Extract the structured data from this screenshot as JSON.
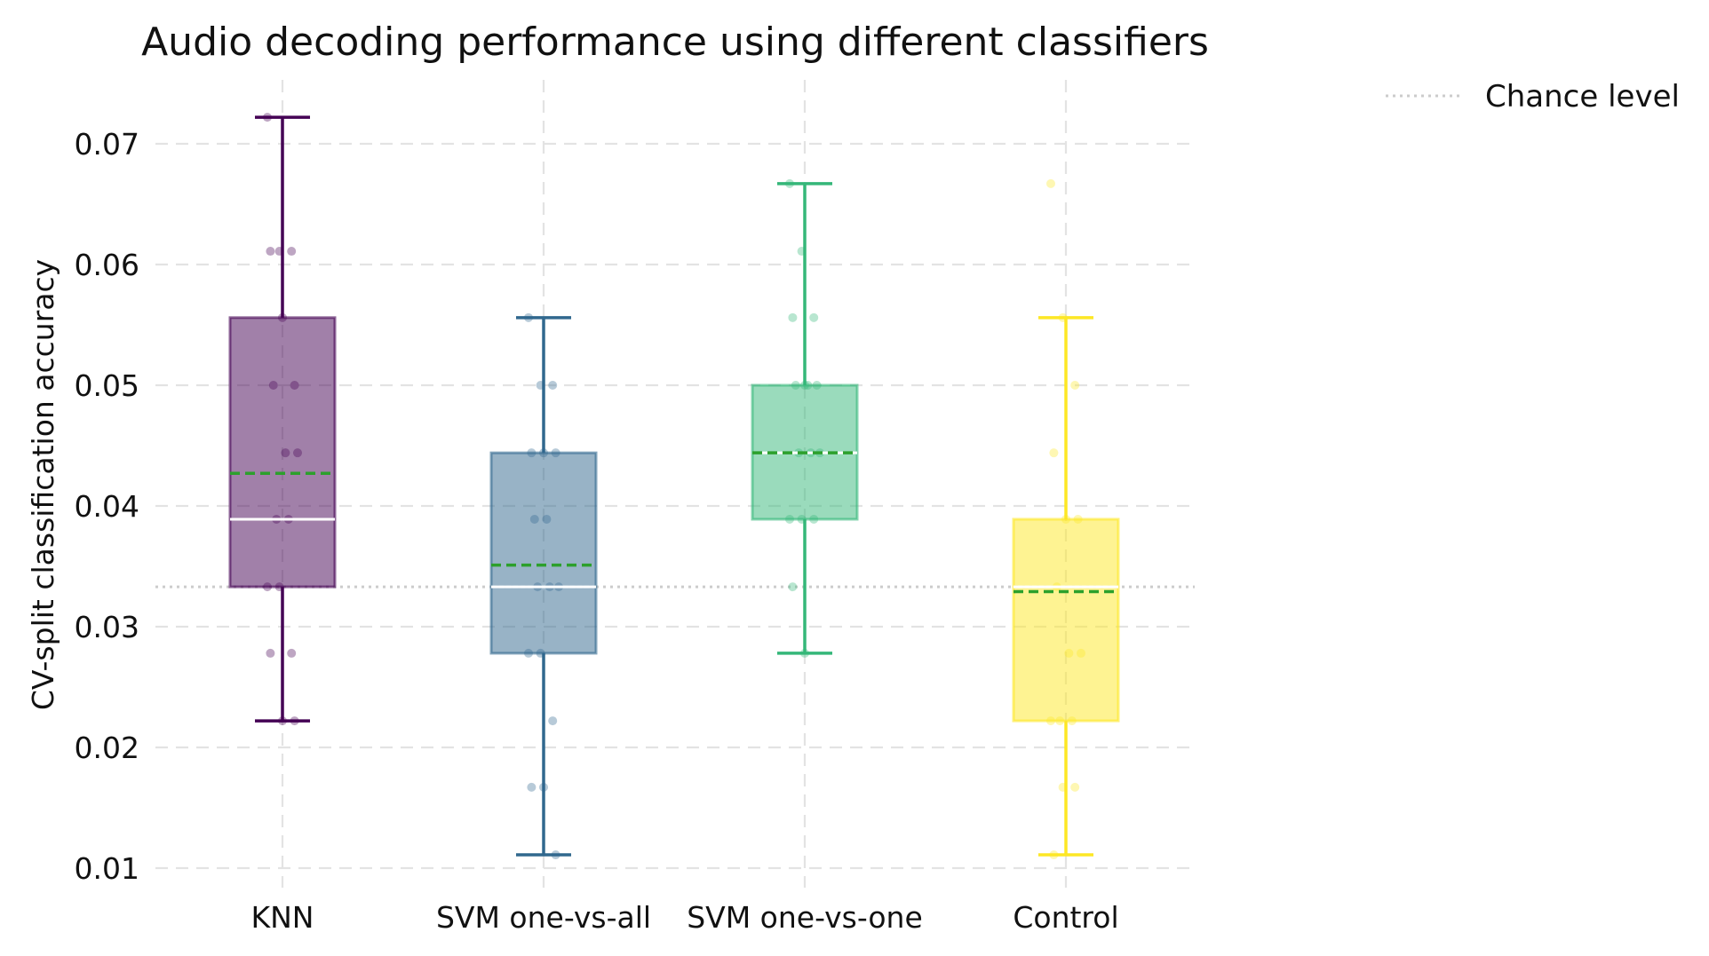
{
  "chart_data": {
    "type": "box",
    "title": "Audio decoding performance using different classifiers",
    "xlabel": "",
    "ylabel": "CV-split classification accuracy",
    "ylim": [
      0.0075,
      0.0755
    ],
    "yticks": [
      0.01,
      0.02,
      0.03,
      0.04,
      0.05,
      0.06,
      0.07
    ],
    "ytick_labels": [
      "0.01",
      "0.02",
      "0.03",
      "0.04",
      "0.05",
      "0.06",
      "0.07"
    ],
    "grid": true,
    "legend": {
      "placement": "outside-top-right",
      "entries": [
        {
          "label": "Chance level",
          "style": "dotted",
          "color": "#cccccc"
        }
      ]
    },
    "chance_level": 0.0333,
    "median_line_color": "#ffffff",
    "mean_line_color": "#2ca02c",
    "categories": [
      "KNN",
      "SVM one-vs-all",
      "SVM one-vs-one",
      "Control"
    ],
    "series": [
      {
        "color": "#440154",
        "whisker_low": 0.0222,
        "q1": 0.0333,
        "median": 0.0389,
        "q3": 0.0556,
        "whisker_high": 0.0722,
        "mean": 0.0427,
        "points": [
          0.0722,
          0.0611,
          0.0611,
          0.0611,
          0.0556,
          0.05,
          0.05,
          0.0444,
          0.0444,
          0.0389,
          0.0389,
          0.0333,
          0.0333,
          0.0278,
          0.0278,
          0.0222,
          0.0222
        ]
      },
      {
        "color": "#31688e",
        "whisker_low": 0.0111,
        "q1": 0.0278,
        "median": 0.0333,
        "q3": 0.0444,
        "whisker_high": 0.0556,
        "mean": 0.0351,
        "points": [
          0.0556,
          0.05,
          0.05,
          0.0444,
          0.0444,
          0.0444,
          0.0389,
          0.0389,
          0.0333,
          0.0333,
          0.0333,
          0.0278,
          0.0278,
          0.0222,
          0.0167,
          0.0167,
          0.0111
        ]
      },
      {
        "color": "#35b779",
        "whisker_low": 0.0278,
        "q1": 0.0389,
        "median": 0.0444,
        "q3": 0.05,
        "whisker_high": 0.0667,
        "mean": 0.0444,
        "points": [
          0.0667,
          0.0611,
          0.0556,
          0.0556,
          0.05,
          0.05,
          0.05,
          0.05,
          0.0444,
          0.0444,
          0.0444,
          0.0389,
          0.0389,
          0.0389,
          0.0333,
          0.0278
        ]
      },
      {
        "color": "#fde725",
        "whisker_low": 0.0111,
        "q1": 0.0222,
        "median": 0.0333,
        "q3": 0.0389,
        "whisker_high": 0.0556,
        "mean": 0.0329,
        "points": [
          0.0667,
          0.0556,
          0.05,
          0.0444,
          0.0389,
          0.0389,
          0.0333,
          0.0278,
          0.0278,
          0.0222,
          0.0222,
          0.0222,
          0.0167,
          0.0167,
          0.0111
        ]
      }
    ]
  }
}
